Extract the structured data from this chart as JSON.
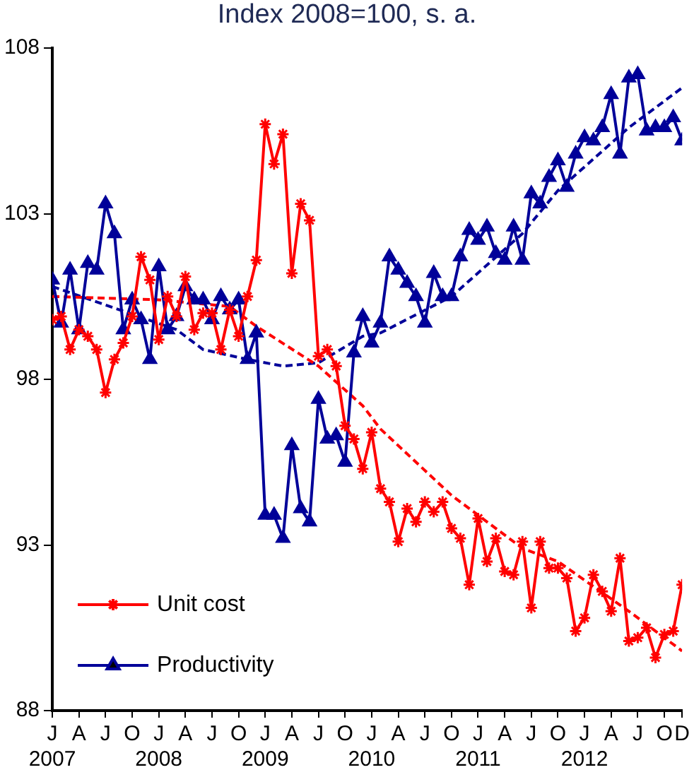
{
  "chart_data": {
    "type": "line",
    "subtitle": "Index 2008=100, s. a.",
    "x": [
      "2007-01",
      "2007-02",
      "2007-03",
      "2007-04",
      "2007-05",
      "2007-06",
      "2007-07",
      "2007-08",
      "2007-09",
      "2007-10",
      "2007-11",
      "2007-12",
      "2008-01",
      "2008-02",
      "2008-03",
      "2008-04",
      "2008-05",
      "2008-06",
      "2008-07",
      "2008-08",
      "2008-09",
      "2008-10",
      "2008-11",
      "2008-12",
      "2009-01",
      "2009-02",
      "2009-03",
      "2009-04",
      "2009-05",
      "2009-06",
      "2009-07",
      "2009-08",
      "2009-09",
      "2009-10",
      "2009-11",
      "2009-12",
      "2010-01",
      "2010-02",
      "2010-03",
      "2010-04",
      "2010-05",
      "2010-06",
      "2010-07",
      "2010-08",
      "2010-09",
      "2010-10",
      "2010-11",
      "2010-12",
      "2011-01",
      "2011-02",
      "2011-03",
      "2011-04",
      "2011-05",
      "2011-06",
      "2011-07",
      "2011-08",
      "2011-09",
      "2011-10",
      "2011-11",
      "2011-12",
      "2012-01",
      "2012-02",
      "2012-03",
      "2012-04",
      "2012-05",
      "2012-06",
      "2012-07",
      "2012-08",
      "2012-09",
      "2012-10",
      "2012-11",
      "2012-12"
    ],
    "series": [
      {
        "name": "Unit cost",
        "color": "#ff0000",
        "marker": "cross",
        "line_style": "solid",
        "values": [
          99.8,
          99.9,
          98.9,
          99.5,
          99.3,
          98.9,
          97.6,
          98.6,
          99.1,
          99.9,
          101.7,
          101.0,
          99.2,
          100.5,
          99.9,
          101.1,
          99.5,
          100.0,
          100.0,
          98.9,
          100.1,
          99.3,
          100.5,
          101.6,
          105.7,
          104.5,
          105.4,
          101.2,
          103.3,
          102.8,
          98.7,
          98.9,
          98.4,
          96.6,
          96.2,
          95.3,
          96.4,
          94.7,
          94.3,
          93.1,
          94.1,
          93.7,
          94.3,
          94.0,
          94.3,
          93.5,
          93.2,
          91.8,
          93.8,
          92.5,
          93.2,
          92.2,
          92.1,
          93.1,
          91.1,
          93.1,
          92.3,
          92.3,
          92.0,
          90.4,
          90.8,
          92.1,
          91.6,
          91.0,
          92.6,
          90.1,
          90.2,
          90.5,
          89.6,
          90.3,
          90.4,
          91.8
        ]
      },
      {
        "name": "Productivity",
        "color": "#000099",
        "marker": "triangle",
        "line_style": "solid",
        "values": [
          101.0,
          99.7,
          101.3,
          99.5,
          101.5,
          101.3,
          103.3,
          102.4,
          99.5,
          100.4,
          99.8,
          98.6,
          101.4,
          99.5,
          99.9,
          100.8,
          100.4,
          100.4,
          99.8,
          100.5,
          100.1,
          100.4,
          98.6,
          99.4,
          93.9,
          93.9,
          93.2,
          96.0,
          94.1,
          93.7,
          97.4,
          96.2,
          96.3,
          95.5,
          98.8,
          99.9,
          99.1,
          99.7,
          101.7,
          101.3,
          100.9,
          100.5,
          99.7,
          101.2,
          100.5,
          100.5,
          101.7,
          102.5,
          102.2,
          102.6,
          101.8,
          101.6,
          102.6,
          101.6,
          103.6,
          103.3,
          104.1,
          104.6,
          103.8,
          104.8,
          105.3,
          105.2,
          105.6,
          106.6,
          104.8,
          107.1,
          107.2,
          105.5,
          105.6,
          105.6,
          105.9,
          105.2
        ]
      },
      {
        "color": "#ff0000",
        "marker": "none",
        "line_style": "dashed",
        "x": [
          "2007-01",
          "2008-01",
          "2008-09",
          "2008-12",
          "2009-07",
          "2009-12",
          "2010-02",
          "2010-10",
          "2011-06",
          "2011-10",
          "2012-06",
          "2012-12"
        ],
        "values": [
          100.5,
          100.4,
          100.2,
          99.6,
          98.4,
          97.2,
          96.5,
          94.5,
          92.9,
          92.5,
          91.0,
          89.8
        ]
      },
      {
        "color": "#000099",
        "marker": "none",
        "line_style": "dashed",
        "x": [
          "2007-01",
          "2008-03",
          "2008-06",
          "2008-11",
          "2009-03",
          "2009-07",
          "2009-12",
          "2010-02",
          "2010-10",
          "2011-06",
          "2011-10",
          "2012-06",
          "2012-12"
        ],
        "values": [
          100.8,
          99.5,
          98.9,
          98.6,
          98.4,
          98.5,
          99.3,
          99.4,
          100.5,
          102.4,
          103.7,
          105.6,
          106.8
        ]
      }
    ],
    "xlim": [
      "2007-01",
      "2012-12"
    ],
    "xticks": [
      {
        "value": "2007-01",
        "label": "J\n2007"
      },
      {
        "value": "2007-04",
        "label": "A"
      },
      {
        "value": "2007-07",
        "label": "J"
      },
      {
        "value": "2007-10",
        "label": "O"
      },
      {
        "value": "2008-01",
        "label": "J\n2008"
      },
      {
        "value": "2008-04",
        "label": "A"
      },
      {
        "value": "2008-07",
        "label": "J"
      },
      {
        "value": "2008-10",
        "label": "O"
      },
      {
        "value": "2009-01",
        "label": "J\n2009"
      },
      {
        "value": "2009-04",
        "label": "A"
      },
      {
        "value": "2009-07",
        "label": "J"
      },
      {
        "value": "2009-10",
        "label": "O"
      },
      {
        "value": "2010-01",
        "label": "J\n2010"
      },
      {
        "value": "2010-04",
        "label": "A"
      },
      {
        "value": "2010-07",
        "label": "J"
      },
      {
        "value": "2010-10",
        "label": "O"
      },
      {
        "value": "2011-01",
        "label": "J\n2011"
      },
      {
        "value": "2011-04",
        "label": "A"
      },
      {
        "value": "2011-07",
        "label": "J"
      },
      {
        "value": "2011-10",
        "label": "O"
      },
      {
        "value": "2012-01",
        "label": "J\n2012"
      },
      {
        "value": "2012-04",
        "label": "A"
      },
      {
        "value": "2012-07",
        "label": "J"
      },
      {
        "value": "2012-10",
        "label": "O"
      },
      {
        "value": "2012-12",
        "label": "D"
      }
    ],
    "ylim": [
      88,
      108
    ],
    "yticks": [
      88,
      93,
      98,
      103,
      108
    ],
    "grid": false,
    "legend": "bottom left"
  }
}
